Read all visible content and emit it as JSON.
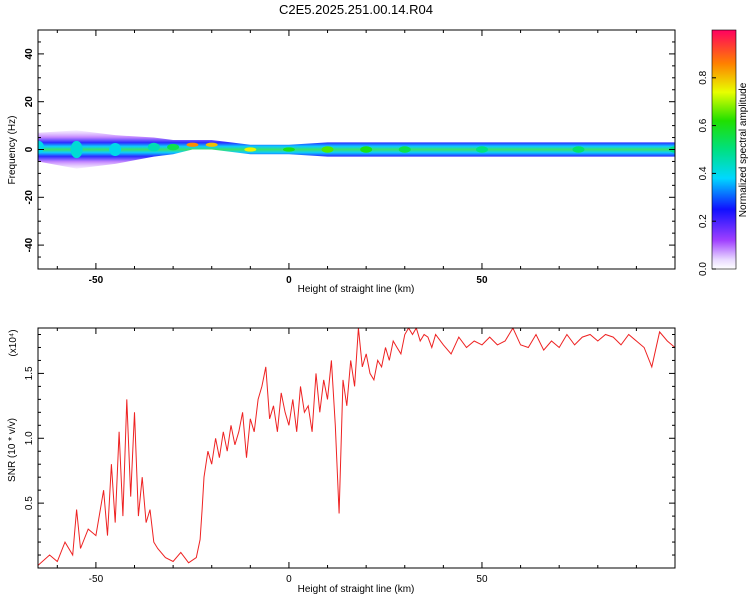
{
  "title": "C2E5.2025.251.00.14.R04",
  "chart_data": [
    {
      "type": "heatmap",
      "title": "C2E5.2025.251.00.14.R04",
      "xlabel": "Height of straight line (km)",
      "ylabel": "Frequency (Hz)",
      "xlim": [
        -65,
        100
      ],
      "ylim": [
        -50,
        50
      ],
      "x_ticks": [
        -50,
        0,
        50
      ],
      "y_ticks": [
        -40,
        -20,
        0,
        20,
        40
      ],
      "colorbar": {
        "label": "Normalized spectral amplitude",
        "range": [
          0,
          1
        ],
        "ticks": [
          "0.0",
          "0.2",
          "0.4",
          "0.6",
          "0.8"
        ],
        "colormap": "rainbow"
      },
      "band": [
        {
          "x": -65,
          "center": 1,
          "halfwidth": 6,
          "level": 0.4
        },
        {
          "x": -55,
          "center": 0,
          "halfwidth": 8,
          "level": 0.42
        },
        {
          "x": -45,
          "center": 0,
          "halfwidth": 6,
          "level": 0.4
        },
        {
          "x": -35,
          "center": 1,
          "halfwidth": 4,
          "level": 0.45
        },
        {
          "x": -30,
          "center": 1,
          "halfwidth": 3,
          "level": 0.55
        },
        {
          "x": -25,
          "center": 2,
          "halfwidth": 2,
          "level": 0.85
        },
        {
          "x": -20,
          "center": 2,
          "halfwidth": 2,
          "level": 0.8
        },
        {
          "x": -10,
          "center": 0,
          "halfwidth": 2,
          "level": 0.75
        },
        {
          "x": 0,
          "center": 0,
          "halfwidth": 2,
          "level": 0.6
        },
        {
          "x": 10,
          "center": 0,
          "halfwidth": 3,
          "level": 0.65
        },
        {
          "x": 20,
          "center": 0,
          "halfwidth": 3,
          "level": 0.6
        },
        {
          "x": 30,
          "center": 0,
          "halfwidth": 3,
          "level": 0.55
        },
        {
          "x": 50,
          "center": 0,
          "halfwidth": 3,
          "level": 0.5
        },
        {
          "x": 75,
          "center": 0,
          "halfwidth": 3,
          "level": 0.52
        },
        {
          "x": 100,
          "center": 0,
          "halfwidth": 3,
          "level": 0.5
        }
      ]
    },
    {
      "type": "line",
      "xlabel": "Height of straight line (km)",
      "ylabel": "SNR (10 * v/v)",
      "y_multiplier": "(x10⁴)",
      "xlim": [
        -65,
        100
      ],
      "ylim": [
        0,
        1.85
      ],
      "x_ticks": [
        -50,
        0,
        50
      ],
      "y_ticks": [
        "0.5",
        "1.0",
        "1.5"
      ],
      "series": [
        {
          "color": "#ee2222",
          "x": [
            -65,
            -62,
            -60,
            -58,
            -56,
            -55,
            -54,
            -52,
            -50,
            -48,
            -47,
            -46,
            -45,
            -44,
            -43,
            -42,
            -41,
            -40,
            -39,
            -38,
            -37,
            -36,
            -35,
            -34,
            -32,
            -30,
            -28,
            -26,
            -24,
            -23,
            -22.5,
            -22,
            -21,
            -20,
            -19,
            -18,
            -17,
            -16,
            -15,
            -14,
            -13,
            -12,
            -11,
            -10,
            -9,
            -8,
            -7,
            -6,
            -5,
            -4,
            -3,
            -2,
            -1,
            0,
            1,
            2,
            3,
            4,
            5,
            6,
            7,
            8,
            9,
            10,
            11,
            12,
            13,
            14,
            15,
            16,
            17,
            18,
            19,
            20,
            21,
            22,
            23,
            24,
            25,
            26,
            27,
            28,
            29,
            30,
            31,
            32,
            33,
            34,
            35,
            36,
            37,
            38,
            40,
            42,
            44,
            46,
            48,
            50,
            52,
            54,
            56,
            58,
            60,
            62,
            64,
            66,
            68,
            70,
            72,
            74,
            76,
            78,
            80,
            82,
            84,
            86,
            88,
            90,
            92,
            94,
            96,
            98,
            100
          ],
          "y": [
            0.02,
            0.1,
            0.05,
            0.2,
            0.1,
            0.45,
            0.15,
            0.3,
            0.25,
            0.6,
            0.25,
            0.8,
            0.35,
            1.05,
            0.4,
            1.3,
            0.55,
            1.2,
            0.4,
            0.7,
            0.35,
            0.45,
            0.2,
            0.15,
            0.08,
            0.05,
            0.12,
            0.04,
            0.08,
            0.22,
            0.45,
            0.7,
            0.9,
            0.8,
            1.0,
            0.85,
            1.05,
            0.9,
            1.1,
            0.95,
            1.05,
            1.2,
            0.85,
            1.15,
            1.05,
            1.3,
            1.4,
            1.55,
            1.15,
            1.25,
            1.05,
            1.35,
            1.2,
            1.1,
            1.3,
            1.05,
            1.4,
            1.2,
            1.25,
            1.05,
            1.5,
            1.2,
            1.45,
            1.3,
            1.6,
            1.1,
            0.42,
            1.45,
            1.25,
            1.6,
            1.4,
            1.85,
            1.55,
            1.65,
            1.5,
            1.45,
            1.6,
            1.55,
            1.7,
            1.6,
            1.75,
            1.7,
            1.65,
            1.8,
            1.85,
            1.8,
            1.85,
            1.75,
            1.8,
            1.78,
            1.7,
            1.8,
            1.72,
            1.65,
            1.78,
            1.7,
            1.75,
            1.72,
            1.78,
            1.72,
            1.75,
            1.85,
            1.72,
            1.7,
            1.8,
            1.68,
            1.75,
            1.7,
            1.8,
            1.72,
            1.78,
            1.8,
            1.75,
            1.8,
            1.78,
            1.72,
            1.8,
            1.75,
            1.7,
            1.55,
            1.82,
            1.75,
            1.7
          ]
        }
      ]
    }
  ]
}
